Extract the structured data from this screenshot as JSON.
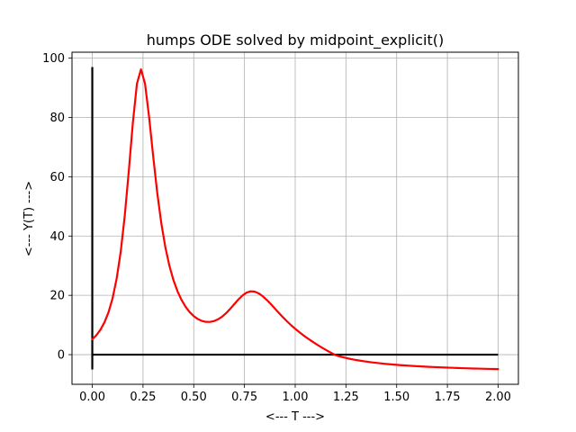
{
  "chart_data": {
    "type": "line",
    "title": "humps ODE solved by midpoint_explicit()",
    "xlabel": "<--- T --->",
    "ylabel": "<--- Y(T) --->",
    "xlim": [
      -0.1,
      2.1
    ],
    "ylim": [
      -10,
      102
    ],
    "grid": true,
    "xticks": [
      0.0,
      0.25,
      0.5,
      0.75,
      1.0,
      1.25,
      1.5,
      1.75,
      2.0
    ],
    "xtick_labels": [
      "0.00",
      "0.25",
      "0.50",
      "0.75",
      "1.00",
      "1.25",
      "1.50",
      "1.75",
      "2.00"
    ],
    "yticks": [
      0,
      20,
      40,
      60,
      80,
      100
    ],
    "ytick_labels": [
      "0",
      "20",
      "40",
      "60",
      "80",
      "100"
    ],
    "series": [
      {
        "color": "#ff0000",
        "x": [
          0.0,
          0.02,
          0.04,
          0.06,
          0.08,
          0.1,
          0.12,
          0.14,
          0.16,
          0.18,
          0.2,
          0.22,
          0.24,
          0.26,
          0.28,
          0.3,
          0.32,
          0.34,
          0.36,
          0.38,
          0.4,
          0.42,
          0.44,
          0.46,
          0.48,
          0.5,
          0.52,
          0.54,
          0.56,
          0.58,
          0.6,
          0.62,
          0.64,
          0.66,
          0.68,
          0.7,
          0.72,
          0.74,
          0.76,
          0.78,
          0.8,
          0.82,
          0.84,
          0.86,
          0.88,
          0.9,
          0.92,
          0.94,
          0.96,
          0.98,
          1.0,
          1.02,
          1.04,
          1.06,
          1.08,
          1.1,
          1.12,
          1.14,
          1.16,
          1.18,
          1.2,
          1.22,
          1.24,
          1.26,
          1.28,
          1.3,
          1.32,
          1.34,
          1.36,
          1.38,
          1.4,
          1.42,
          1.44,
          1.46,
          1.48,
          1.5,
          1.52,
          1.54,
          1.56,
          1.58,
          1.6,
          1.62,
          1.64,
          1.66,
          1.68,
          1.7,
          1.72,
          1.74,
          1.76,
          1.78,
          1.8,
          1.82,
          1.84,
          1.86,
          1.88,
          1.9,
          1.92,
          1.94,
          1.96,
          1.98,
          2.0
        ],
        "values": [
          5.18,
          6.55,
          8.39,
          10.88,
          14.3,
          19.02,
          25.6,
          34.67,
          46.82,
          62.0,
          78.29,
          91.36,
          96.2,
          91.35,
          80.13,
          66.97,
          54.64,
          44.37,
          36.25,
          29.97,
          25.12,
          21.36,
          18.42,
          16.13,
          14.35,
          13.0,
          12.02,
          11.38,
          11.05,
          11.04,
          11.33,
          11.93,
          12.83,
          14.03,
          15.47,
          17.05,
          18.6,
          19.94,
          20.9,
          21.35,
          21.26,
          20.67,
          19.7,
          18.45,
          17.04,
          15.55,
          14.05,
          12.59,
          11.21,
          9.92,
          8.72,
          7.6,
          6.55,
          5.56,
          4.62,
          3.72,
          2.86,
          2.04,
          1.26,
          0.51,
          -0.2,
          -0.6,
          -0.95,
          -1.27,
          -1.55,
          -1.81,
          -2.04,
          -2.25,
          -2.44,
          -2.62,
          -2.78,
          -2.93,
          -3.07,
          -3.2,
          -3.32,
          -3.43,
          -3.54,
          -3.63,
          -3.73,
          -3.81,
          -3.89,
          -3.97,
          -4.04,
          -4.11,
          -4.17,
          -4.23,
          -4.29,
          -4.35,
          -4.4,
          -4.45,
          -4.5,
          -4.55,
          -4.59,
          -4.63,
          -4.68,
          -4.71,
          -4.75,
          -4.79,
          -4.82,
          -4.85,
          -4.89
        ]
      }
    ],
    "reference_lines": [
      {
        "kind": "horizontal",
        "y": 0,
        "x_from": 0.0,
        "x_to": 2.0,
        "color": "#000000"
      },
      {
        "kind": "vertical",
        "x": 0,
        "y_from": -5,
        "y_to": 97,
        "color": "#000000"
      }
    ]
  }
}
